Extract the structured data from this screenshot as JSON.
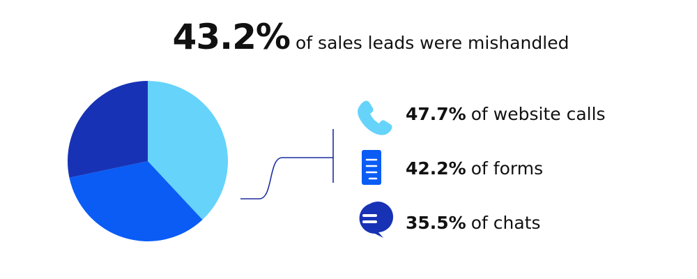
{
  "chart_data": {
    "type": "pie",
    "title": {
      "highlight": "43.2%",
      "text": "of sales leads were mishandled"
    },
    "categories": [
      "of website calls",
      "of forms",
      "of chats"
    ],
    "values": [
      47.7,
      42.2,
      35.5
    ],
    "value_labels": [
      "47.7%",
      "42.2%",
      "35.5%"
    ],
    "colors": [
      "#66d3fb",
      "#0a5cf5",
      "#1732b5"
    ]
  }
}
